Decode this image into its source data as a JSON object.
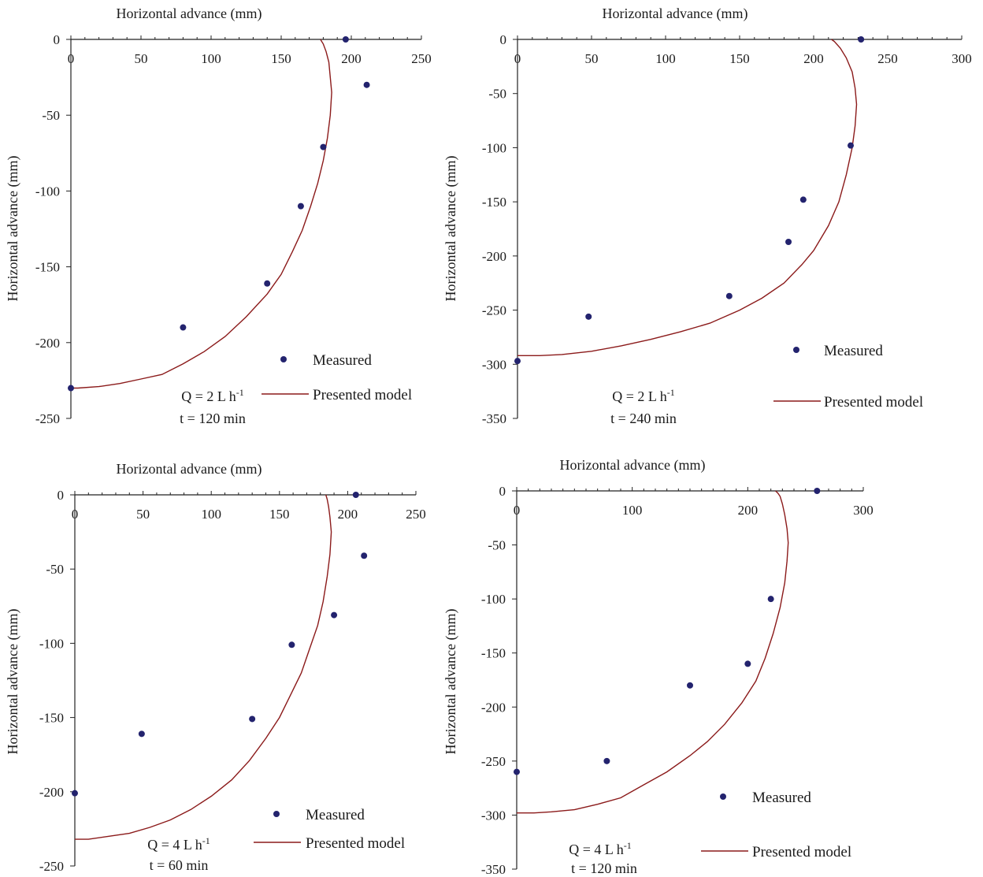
{
  "chart_data": [
    {
      "type": "scatter",
      "xlabel": "Horizontal advance (mm)",
      "ylabel": "Horizontal advance (mm)",
      "xlim": [
        0,
        250
      ],
      "ylim": [
        -250,
        0
      ],
      "xticks": [
        0,
        50,
        100,
        150,
        200,
        250
      ],
      "yticks": [
        0,
        -50,
        -100,
        -150,
        -200,
        -250
      ],
      "conditions": [
        "Q = 2 L h-1",
        "t = 120 min"
      ],
      "legend": {
        "position": "bottom-right",
        "entries": [
          "Measured",
          "Presented model"
        ]
      },
      "series": [
        {
          "name": "Measured",
          "marker": "dot",
          "x": [
            0,
            80,
            140,
            164,
            180,
            196,
            211
          ],
          "y": [
            -230,
            -190,
            -161,
            -110,
            -71,
            0,
            -30
          ]
        },
        {
          "name": "Presented model",
          "marker": "line",
          "x": [
            0,
            5,
            20,
            35,
            50,
            65,
            80,
            95,
            110,
            125,
            140,
            150,
            158,
            165,
            171,
            176,
            180,
            183,
            185,
            186,
            185,
            184,
            182,
            180,
            178
          ],
          "y": [
            -230,
            -230,
            -229,
            -227,
            -224,
            -221,
            -214,
            -206,
            -196,
            -183,
            -168,
            -155,
            -140,
            -126,
            -110,
            -95,
            -80,
            -65,
            -50,
            -35,
            -25,
            -15,
            -8,
            -3,
            0
          ]
        }
      ]
    },
    {
      "type": "scatter",
      "xlabel": "Horizontal advance (mm)",
      "ylabel": "Horizontal advance (mm)",
      "xlim": [
        0,
        300
      ],
      "ylim": [
        -350,
        0
      ],
      "xticks": [
        0,
        50,
        100,
        150,
        200,
        250,
        300
      ],
      "yticks": [
        0,
        -50,
        -100,
        -150,
        -200,
        -250,
        -300,
        -350
      ],
      "conditions": [
        "Q = 2 L h-1",
        "t = 240 min"
      ],
      "legend": {
        "position": "bottom-right",
        "entries": [
          "Measured",
          "Presented model"
        ]
      },
      "series": [
        {
          "name": "Measured",
          "marker": "dot",
          "x": [
            0,
            48,
            143,
            183,
            193,
            225,
            232
          ],
          "y": [
            -297,
            -256,
            -237,
            -187,
            -148,
            -98,
            0
          ]
        },
        {
          "name": "Presented model",
          "marker": "line",
          "x": [
            0,
            15,
            30,
            50,
            70,
            90,
            110,
            130,
            150,
            165,
            180,
            192,
            200,
            210,
            217,
            222,
            226,
            228,
            229,
            228,
            226,
            222,
            218,
            214,
            212
          ],
          "y": [
            -292,
            -292,
            -291,
            -288,
            -283,
            -277,
            -270,
            -262,
            -250,
            -239,
            -225,
            -208,
            -195,
            -172,
            -150,
            -125,
            -100,
            -80,
            -60,
            -45,
            -30,
            -17,
            -8,
            -2,
            0
          ]
        }
      ]
    },
    {
      "type": "scatter",
      "xlabel": "Horizontal advance (mm)",
      "ylabel": "Horizontal advance (mm)",
      "xlim": [
        0,
        250
      ],
      "ylim": [
        -250,
        0
      ],
      "xticks": [
        0,
        50,
        100,
        150,
        200,
        250
      ],
      "yticks": [
        0,
        -50,
        -100,
        -150,
        -200,
        -250
      ],
      "conditions": [
        "Q = 4 L h-1",
        "t = 60 min"
      ],
      "legend": {
        "position": "bottom-right",
        "entries": [
          "Measured",
          "Presented model"
        ]
      },
      "series": [
        {
          "name": "Measured",
          "marker": "dot",
          "x": [
            0,
            49,
            130,
            159,
            190,
            206,
            212
          ],
          "y": [
            -201,
            -161,
            -151,
            -101,
            -81,
            0,
            -41
          ]
        },
        {
          "name": "Presented model",
          "marker": "line",
          "x": [
            0,
            10,
            25,
            40,
            55,
            70,
            85,
            100,
            115,
            128,
            140,
            150,
            158,
            166,
            172,
            178,
            182,
            185,
            187,
            188,
            187,
            186,
            185,
            184
          ],
          "y": [
            -232,
            -232,
            -230,
            -228,
            -224,
            -219,
            -212,
            -203,
            -192,
            -179,
            -164,
            -150,
            -135,
            -120,
            -104,
            -88,
            -72,
            -55,
            -40,
            -25,
            -15,
            -8,
            -3,
            0
          ]
        }
      ]
    },
    {
      "type": "scatter",
      "xlabel": "Horizontal advance (mm)",
      "ylabel": "Horizontal advance (mm)",
      "xlim": [
        0,
        300
      ],
      "ylim": [
        -350,
        0
      ],
      "xticks": [
        0,
        100,
        200,
        300
      ],
      "yticks": [
        0,
        -50,
        -100,
        -150,
        -200,
        -250,
        -300,
        -350
      ],
      "conditions": [
        "Q = 4 L h-1",
        "t = 120 min"
      ],
      "legend": {
        "position": "bottom-right",
        "entries": [
          "Measured",
          "Presented model"
        ]
      },
      "series": [
        {
          "name": "Measured",
          "marker": "dot",
          "x": [
            0,
            78,
            150,
            200,
            220,
            260
          ],
          "y": [
            -260,
            -250,
            -180,
            -160,
            -100,
            0
          ]
        },
        {
          "name": "Presented model",
          "marker": "line",
          "x": [
            0,
            15,
            30,
            50,
            70,
            90,
            110,
            130,
            150,
            165,
            180,
            195,
            207,
            215,
            222,
            228,
            232,
            234,
            235,
            234,
            232,
            230,
            228,
            226,
            224
          ],
          "y": [
            -298,
            -298,
            -297,
            -295,
            -290,
            -284,
            -272,
            -260,
            -245,
            -232,
            -216,
            -196,
            -176,
            -155,
            -132,
            -108,
            -85,
            -65,
            -48,
            -35,
            -22,
            -12,
            -5,
            -2,
            0
          ]
        }
      ]
    }
  ]
}
